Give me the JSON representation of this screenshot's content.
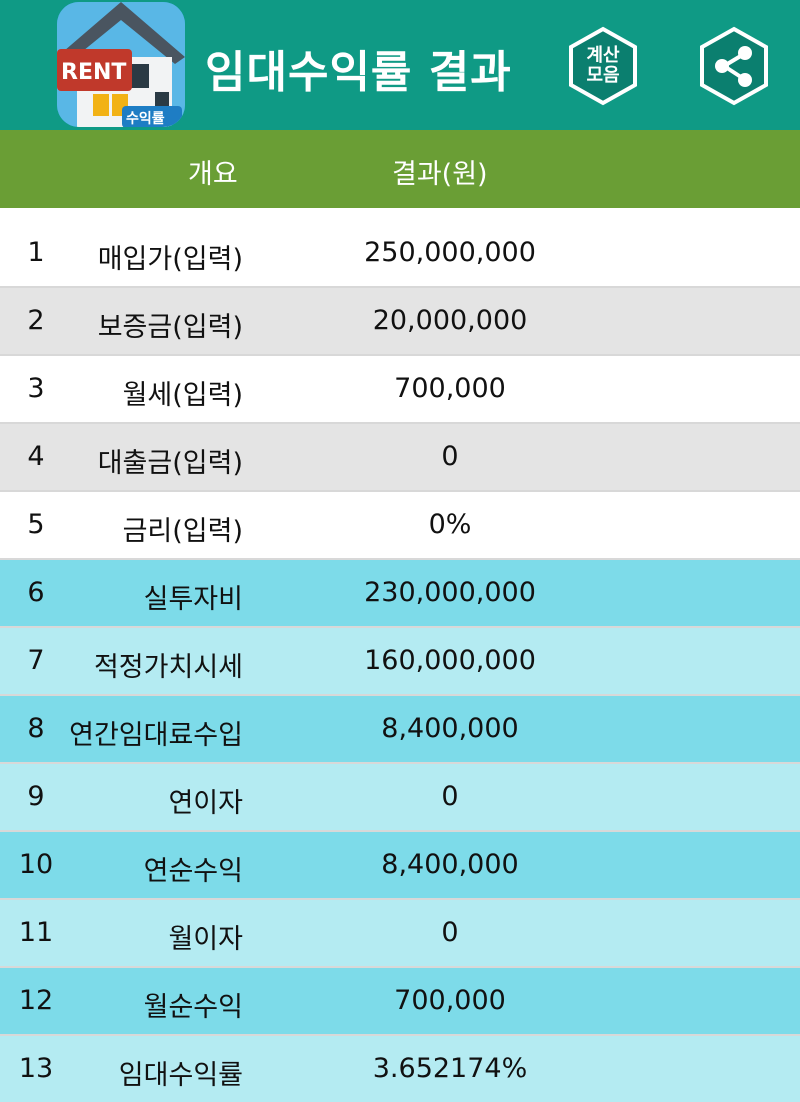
{
  "header": {
    "title": "임대수익률 결과",
    "icon_banner_text": "RENT",
    "icon_badge_text": "수익률",
    "calc_button_label": "계산\n모음",
    "colors": {
      "header_bg": "#0f9a85",
      "table_head_bg": "#6a9e35"
    }
  },
  "table": {
    "columns": [
      "개요",
      "결과(원)"
    ],
    "rows": [
      {
        "no": "1",
        "label": "매입가(입력)",
        "value": "250,000,000"
      },
      {
        "no": "2",
        "label": "보증금(입력)",
        "value": "20,000,000"
      },
      {
        "no": "3",
        "label": "월세(입력)",
        "value": "700,000"
      },
      {
        "no": "4",
        "label": "대출금(입력)",
        "value": "0"
      },
      {
        "no": "5",
        "label": "금리(입력)",
        "value": "0%"
      },
      {
        "no": "6",
        "label": "실투자비",
        "value": "230,000,000"
      },
      {
        "no": "7",
        "label": "적정가치시세",
        "value": "160,000,000"
      },
      {
        "no": "8",
        "label": "연간임대료수입",
        "value": "8,400,000"
      },
      {
        "no": "9",
        "label": "연이자",
        "value": "0"
      },
      {
        "no": "10",
        "label": "연순수익",
        "value": "8,400,000"
      },
      {
        "no": "11",
        "label": "월이자",
        "value": "0"
      },
      {
        "no": "12",
        "label": "월순수익",
        "value": "700,000"
      },
      {
        "no": "13",
        "label": "임대수익률",
        "value": "3.652174%"
      }
    ],
    "row_colors": {
      "input_a": "#ffffff",
      "input_b": "#e4e4e4",
      "result_a": "#7ddbe9",
      "result_b": "#b4ebf2"
    }
  }
}
